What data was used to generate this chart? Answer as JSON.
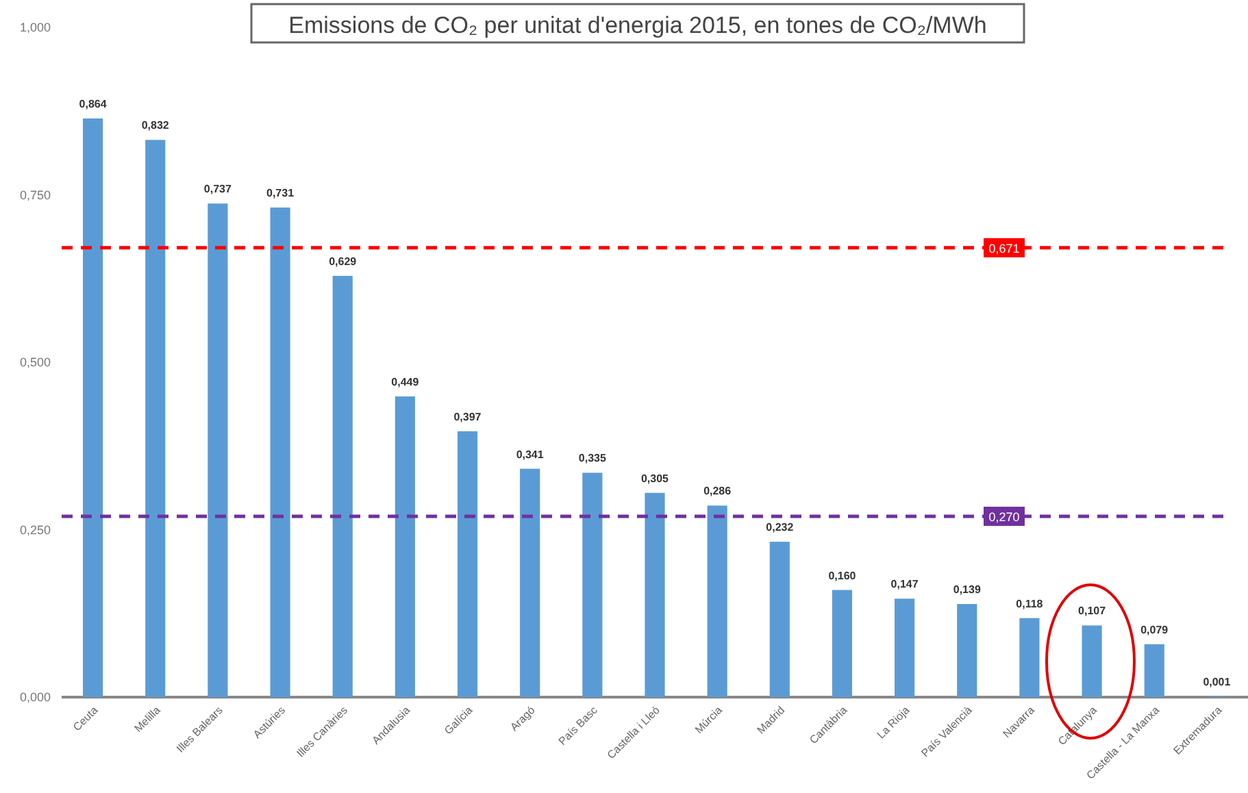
{
  "chart_data": {
    "type": "bar",
    "title": "Emissions de CO₂ per unitat d'energia 2015, en tones de CO₂/MWh",
    "categories": [
      "Ceuta",
      "Melilla",
      "Illes Balears",
      "Astúries",
      "Illes Canàries",
      "Andalusia",
      "Galícia",
      "Aragó",
      "País Basc",
      "Castella i Lleó",
      "Múrcia",
      "Madrid",
      "Cantàbria",
      "La Rioja",
      "País Valencià",
      "Navarra",
      "Catalunya",
      "Castella - La Manxa",
      "Extremadura"
    ],
    "values": [
      0.864,
      0.832,
      0.737,
      0.731,
      0.629,
      0.449,
      0.397,
      0.341,
      0.335,
      0.305,
      0.286,
      0.232,
      0.16,
      0.147,
      0.139,
      0.118,
      0.107,
      0.079,
      0.001
    ],
    "value_labels": [
      "0,864",
      "0,832",
      "0,737",
      "0,731",
      "0,629",
      "0,449",
      "0,397",
      "0,341",
      "0,335",
      "0,305",
      "0,286",
      "0,232",
      "0,160",
      "0,147",
      "0,139",
      "0,118",
      "0,107",
      "0,079",
      "0,001"
    ],
    "color": "#5b9bd5",
    "ylim": [
      0,
      1
    ],
    "yticks": [
      {
        "value": 0,
        "label": "0,000"
      },
      {
        "value": 0.25,
        "label": "0,250"
      },
      {
        "value": 0.5,
        "label": "0,500"
      },
      {
        "value": 0.75,
        "label": "0,750"
      },
      {
        "value": 1,
        "label": "1,000"
      }
    ],
    "ref_lines": [
      {
        "axis": "y",
        "value": 0.671,
        "label": "0,671",
        "color": "#ff0000",
        "line_style": "dashed"
      },
      {
        "axis": "y",
        "value": 0.27,
        "label": "0,270",
        "color": "#7030a0",
        "line_style": "dashed"
      }
    ],
    "grid": false
  }
}
